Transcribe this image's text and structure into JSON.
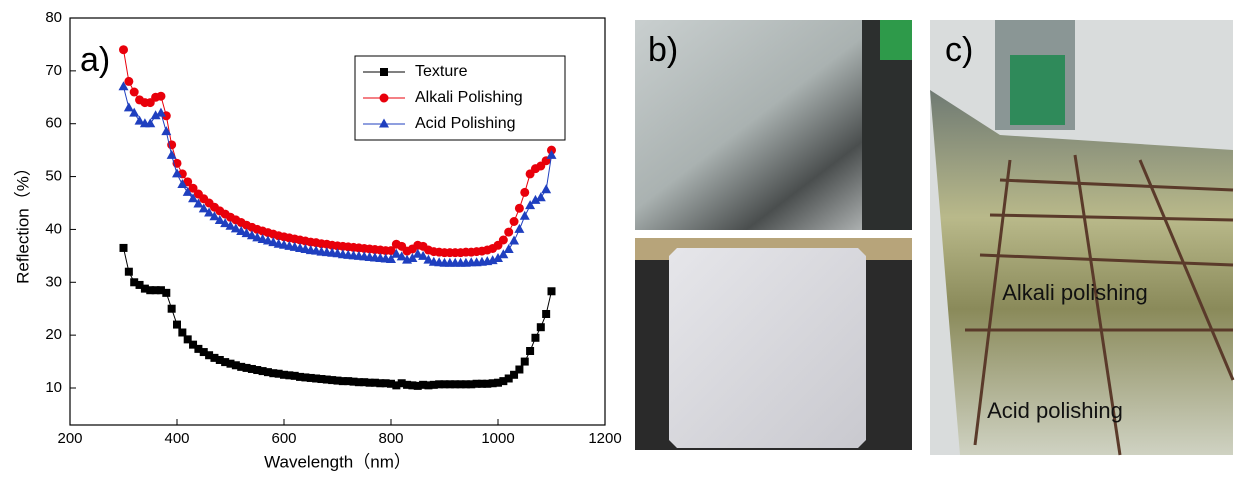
{
  "chart_data": {
    "type": "line",
    "panel_label": "a)",
    "xlabel": "Wavelength（nm）",
    "ylabel": "Reflection（%）",
    "xlim": [
      200,
      1200
    ],
    "ylim": [
      3,
      80
    ],
    "xticks": [
      200,
      400,
      600,
      800,
      1000,
      1200
    ],
    "yticks": [
      10,
      20,
      30,
      40,
      50,
      60,
      70,
      80
    ],
    "legend": "upper right",
    "x": [
      300,
      310,
      320,
      330,
      340,
      350,
      360,
      370,
      380,
      390,
      400,
      410,
      420,
      430,
      440,
      450,
      460,
      470,
      480,
      490,
      500,
      510,
      520,
      530,
      540,
      550,
      560,
      570,
      580,
      590,
      600,
      610,
      620,
      630,
      640,
      650,
      660,
      670,
      680,
      690,
      700,
      710,
      720,
      730,
      740,
      750,
      760,
      770,
      780,
      790,
      800,
      810,
      820,
      830,
      840,
      850,
      860,
      870,
      880,
      890,
      900,
      910,
      920,
      930,
      940,
      950,
      960,
      970,
      980,
      990,
      1000,
      1010,
      1020,
      1030,
      1040,
      1050,
      1060,
      1070,
      1080,
      1090,
      1100
    ],
    "series": [
      {
        "name": "Texture",
        "color": "#000000",
        "marker": "square",
        "values": [
          36.5,
          32,
          30,
          29.5,
          28.8,
          28.5,
          28.5,
          28.5,
          28,
          25,
          22,
          20.5,
          19.2,
          18.2,
          17.4,
          16.8,
          16.2,
          15.7,
          15.3,
          14.9,
          14.6,
          14.3,
          14,
          13.8,
          13.6,
          13.4,
          13.2,
          13,
          12.8,
          12.7,
          12.5,
          12.4,
          12.3,
          12.1,
          12,
          11.9,
          11.8,
          11.7,
          11.6,
          11.5,
          11.4,
          11.3,
          11.3,
          11.2,
          11.1,
          11.1,
          11,
          11,
          10.9,
          10.9,
          10.8,
          10.5,
          10.9,
          10.6,
          10.5,
          10.4,
          10.6,
          10.5,
          10.6,
          10.7,
          10.7,
          10.7,
          10.7,
          10.7,
          10.7,
          10.7,
          10.8,
          10.8,
          10.8,
          10.9,
          11,
          11.3,
          11.8,
          12.5,
          13.5,
          15,
          17,
          19.5,
          21.5,
          24,
          28.3
        ]
      },
      {
        "name": "Alkali Polishing",
        "color": "#e8000b",
        "marker": "circle",
        "values": [
          74,
          68,
          66,
          64.5,
          64,
          64,
          65,
          65.2,
          61.5,
          56,
          52.5,
          50.5,
          49,
          47.8,
          46.7,
          45.8,
          45,
          44.2,
          43.5,
          42.9,
          42.3,
          41.8,
          41.3,
          40.8,
          40.4,
          40,
          39.7,
          39.4,
          39.1,
          38.8,
          38.6,
          38.4,
          38.2,
          38,
          37.8,
          37.6,
          37.5,
          37.3,
          37.2,
          37,
          36.9,
          36.8,
          36.7,
          36.6,
          36.5,
          36.4,
          36.3,
          36.2,
          36.1,
          36,
          36,
          37.2,
          36.8,
          35.9,
          36.3,
          37,
          36.8,
          36.1,
          35.8,
          35.7,
          35.6,
          35.6,
          35.6,
          35.6,
          35.7,
          35.7,
          35.8,
          35.9,
          36.1,
          36.4,
          37,
          38,
          39.5,
          41.5,
          44,
          47,
          50.5,
          51.5,
          52,
          53,
          55
        ]
      },
      {
        "name": "Acid Polishing",
        "color": "#1f3fbf",
        "marker": "triangle",
        "values": [
          67,
          63,
          62,
          60.5,
          60,
          60,
          61.5,
          62,
          58.5,
          54,
          50.5,
          48.5,
          47,
          45.8,
          44.8,
          43.9,
          43.1,
          42.4,
          41.7,
          41.1,
          40.6,
          40.1,
          39.6,
          39.2,
          38.8,
          38.4,
          38.1,
          37.8,
          37.5,
          37.2,
          37,
          36.8,
          36.6,
          36.4,
          36.2,
          36,
          35.9,
          35.7,
          35.6,
          35.5,
          35.4,
          35.2,
          35.1,
          35,
          34.9,
          34.8,
          34.7,
          34.6,
          34.5,
          34.4,
          34.3,
          35.3,
          34.8,
          34.2,
          34.5,
          35.3,
          34.9,
          34.2,
          33.8,
          33.7,
          33.6,
          33.6,
          33.6,
          33.6,
          33.6,
          33.7,
          33.7,
          33.8,
          33.9,
          34.1,
          34.5,
          35.2,
          36.2,
          37.8,
          40,
          42.5,
          44.5,
          45.5,
          46,
          47.5,
          54
        ]
      }
    ]
  },
  "photos": {
    "b_label": "b)",
    "c_label": "c)",
    "c_texts": [
      "Alkali polishing",
      "Acid polishing"
    ]
  }
}
